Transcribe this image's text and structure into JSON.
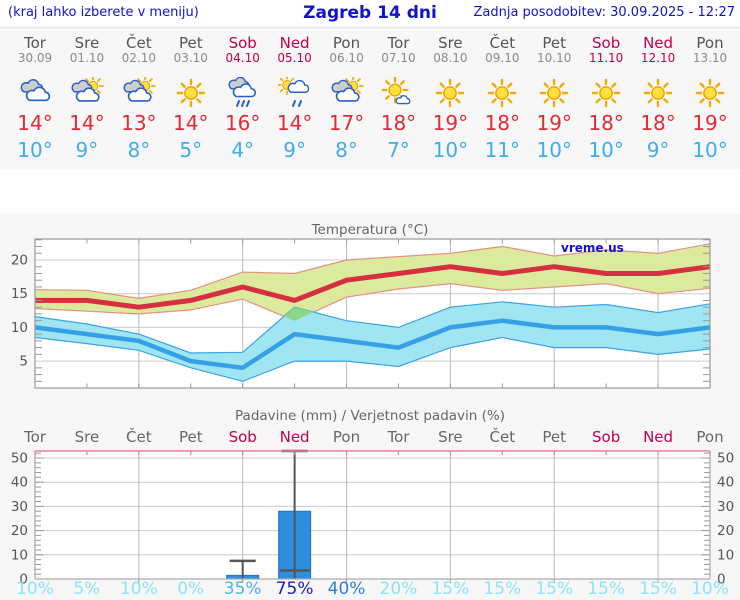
{
  "header": {
    "left_note": "(kraj lahko izberete v meniju)",
    "title": "Zagreb 14 dni",
    "updated": "Zadnja posodobitev: 30.09.2025 - 12:27"
  },
  "colors": {
    "header_text": "#1212cc",
    "weekday": "#555555",
    "weekend": "#bf004f",
    "high_temp": "#e02b36",
    "low_temp": "#3dacf0",
    "max_line": "#d62f41",
    "max_band_fill": "#dcea9e",
    "max_band_stroke": "#e59080",
    "min_line": "#35a0e5",
    "min_band_fill": "#9fe5f2",
    "min_band_stroke": "#3aa5e5",
    "overlap_fill": "#8bd687",
    "bar_fill": "#2f8ede",
    "bar_stroke": "#2272c3",
    "whisker": "#555555",
    "precip_top_axis": "#e87f9f",
    "grid": "#cccccc",
    "frame": "#999999"
  },
  "forecast": {
    "days": [
      {
        "name": "Tor",
        "date": "30.09",
        "weekend": false,
        "icon": "cloudy-icon",
        "high": "14°",
        "low": "10°"
      },
      {
        "name": "Sre",
        "date": "01.10",
        "weekend": false,
        "icon": "partly-cloudy-icon",
        "high": "14°",
        "low": "9°"
      },
      {
        "name": "Čet",
        "date": "02.10",
        "weekend": false,
        "icon": "partly-cloudy-icon",
        "high": "13°",
        "low": "8°"
      },
      {
        "name": "Pet",
        "date": "03.10",
        "weekend": false,
        "icon": "sunny-icon",
        "high": "14°",
        "low": "5°"
      },
      {
        "name": "Sob",
        "date": "04.10",
        "weekend": true,
        "icon": "rain-icon",
        "high": "16°",
        "low": "4°"
      },
      {
        "name": "Ned",
        "date": "05.10",
        "weekend": true,
        "icon": "sun-shower-icon",
        "high": "14°",
        "low": "9°"
      },
      {
        "name": "Pon",
        "date": "06.10",
        "weekend": false,
        "icon": "partly-cloudy-icon",
        "high": "17°",
        "low": "8°"
      },
      {
        "name": "Tor",
        "date": "07.10",
        "weekend": false,
        "icon": "mostly-sunny-icon",
        "high": "18°",
        "low": "7°"
      },
      {
        "name": "Sre",
        "date": "08.10",
        "weekend": false,
        "icon": "sunny-icon",
        "high": "19°",
        "low": "10°"
      },
      {
        "name": "Čet",
        "date": "09.10",
        "weekend": false,
        "icon": "sunny-icon",
        "high": "18°",
        "low": "11°"
      },
      {
        "name": "Pet",
        "date": "10.10",
        "weekend": false,
        "icon": "sunny-icon",
        "high": "19°",
        "low": "10°"
      },
      {
        "name": "Sob",
        "date": "11.10",
        "weekend": true,
        "icon": "sunny-icon",
        "high": "18°",
        "low": "10°"
      },
      {
        "name": "Ned",
        "date": "12.10",
        "weekend": true,
        "icon": "sunny-icon",
        "high": "18°",
        "low": "9°"
      },
      {
        "name": "Pon",
        "date": "13.10",
        "weekend": false,
        "icon": "sunny-icon",
        "high": "19°",
        "low": "10°"
      }
    ]
  },
  "chart_data": [
    {
      "type": "area-line",
      "title": "Temperatura (°C)",
      "watermark": "vreme.us",
      "x_dates": [
        "30.09",
        "01.10",
        "02.10",
        "03.10",
        "04.10",
        "05.10",
        "06.10",
        "07.10",
        "08.10",
        "09.10",
        "10.10",
        "11.10",
        "12.10",
        "13.10"
      ],
      "yticks": [
        5,
        10,
        15,
        20
      ],
      "ylim": [
        1.0,
        23.1
      ],
      "series": [
        {
          "name": "max-range",
          "upper": [
            15.6,
            15.5,
            14.3,
            15.5,
            18.2,
            18.0,
            20.0,
            20.5,
            21.0,
            22.0,
            20.6,
            21.5,
            21.0,
            22.4
          ],
          "lower": [
            12.8,
            12.4,
            12.0,
            12.6,
            14.2,
            11.0,
            14.5,
            15.7,
            16.5,
            15.5,
            16.0,
            16.5,
            15.0,
            15.8
          ]
        },
        {
          "name": "min-range",
          "upper": [
            11.6,
            10.5,
            9.0,
            6.2,
            6.3,
            13.0,
            11.0,
            10.0,
            13.0,
            13.8,
            13.0,
            13.4,
            12.2,
            13.5
          ],
          "lower": [
            8.5,
            7.6,
            6.6,
            4.0,
            2.0,
            5.0,
            5.0,
            4.2,
            7.0,
            8.5,
            7.0,
            7.0,
            6.0,
            6.8
          ]
        },
        {
          "name": "max",
          "values": [
            14,
            14,
            13,
            14,
            16,
            14,
            17,
            18,
            19,
            18,
            19,
            18,
            18,
            19
          ]
        },
        {
          "name": "min",
          "values": [
            10,
            9,
            8,
            5,
            4,
            9,
            8,
            7,
            10,
            11,
            10,
            10,
            9,
            10
          ]
        }
      ]
    },
    {
      "type": "bar",
      "title": "Padavine (mm) / Verjetnost padavin (%)",
      "categories": [
        "Tor",
        "Sre",
        "Čet",
        "Pet",
        "Sob",
        "Ned",
        "Pon",
        "Tor",
        "Sre",
        "Čet",
        "Pet",
        "Sob",
        "Ned",
        "Pon"
      ],
      "weekend_flags": [
        false,
        false,
        false,
        false,
        true,
        true,
        false,
        false,
        false,
        false,
        false,
        true,
        true,
        false
      ],
      "values_mm": [
        0,
        0,
        0,
        0,
        1.5,
        28,
        0,
        0,
        0,
        0,
        0,
        0,
        0,
        0
      ],
      "whisker_low": [
        null,
        null,
        null,
        null,
        0,
        3.5,
        null,
        null,
        null,
        null,
        null,
        null,
        null,
        null
      ],
      "whisker_high": [
        null,
        null,
        null,
        null,
        7.5,
        53,
        null,
        null,
        null,
        null,
        null,
        null,
        null,
        null
      ],
      "yticks": [
        0,
        10,
        20,
        30,
        40,
        50
      ],
      "ylim": [
        0,
        53.5
      ],
      "probabilities": [
        {
          "label": "10%",
          "color": "#8ce4f8"
        },
        {
          "label": "5%",
          "color": "#8ce4f8"
        },
        {
          "label": "10%",
          "color": "#8ce4f8"
        },
        {
          "label": "0%",
          "color": "#8ce4f8"
        },
        {
          "label": "35%",
          "color": "#4ab4ea"
        },
        {
          "label": "75%",
          "color": "#1c1caf"
        },
        {
          "label": "40%",
          "color": "#2e7fd9"
        },
        {
          "label": "20%",
          "color": "#8ce4f8"
        },
        {
          "label": "15%",
          "color": "#8ce4f8"
        },
        {
          "label": "15%",
          "color": "#8ce4f8"
        },
        {
          "label": "15%",
          "color": "#8ce4f8"
        },
        {
          "label": "15%",
          "color": "#8ce4f8"
        },
        {
          "label": "15%",
          "color": "#8ce4f8"
        },
        {
          "label": "10%",
          "color": "#8ce4f8"
        }
      ]
    }
  ]
}
